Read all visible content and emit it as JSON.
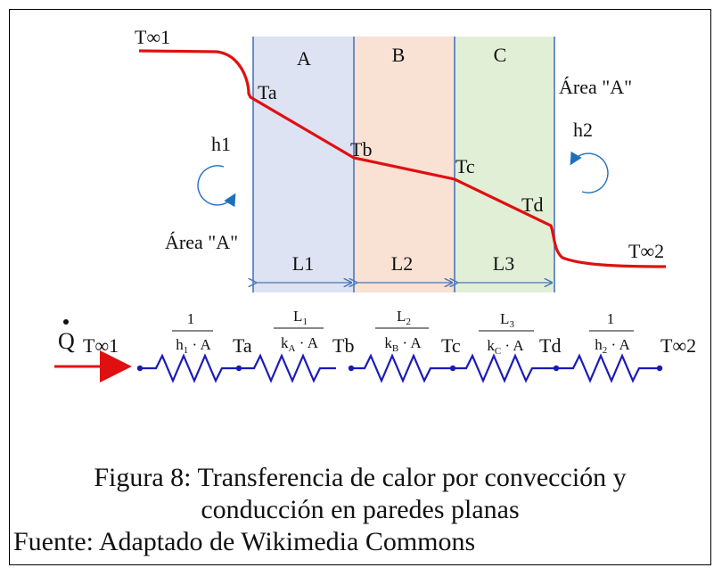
{
  "layers": [
    {
      "name": "A",
      "color": "#dde3f3",
      "length_label": "L1"
    },
    {
      "name": "B",
      "color": "#f9e1d4",
      "length_label": "L2"
    },
    {
      "name": "C",
      "color": "#e1efd7",
      "length_label": "L3"
    }
  ],
  "temperatures": {
    "t_inf1": "T∞1",
    "ta": "Ta",
    "tb": "Tb",
    "tc": "Tc",
    "td": "Td",
    "t_inf2": "T∞2"
  },
  "convection": {
    "h1": "h1",
    "h2": "h2"
  },
  "area_labels": {
    "left": "Área \"A\"",
    "right": "Área \"A\""
  },
  "heat_flow_symbol": "Q",
  "resistances": [
    {
      "num_main": "1",
      "num_sub": "",
      "den_main": "h",
      "den_sub": "1",
      "den_tail": " · A"
    },
    {
      "num_main": "L",
      "num_sub": "1",
      "den_main": "k",
      "den_sub": "A",
      "den_tail": " · A"
    },
    {
      "num_main": "L",
      "num_sub": "2",
      "den_main": "k",
      "den_sub": "B",
      "den_tail": " · A"
    },
    {
      "num_main": "L",
      "num_sub": "3",
      "den_main": "k",
      "den_sub": "C",
      "den_tail": " · A"
    },
    {
      "num_main": "1",
      "num_sub": "",
      "den_main": "h",
      "den_sub": "2",
      "den_tail": " · A"
    }
  ],
  "colors": {
    "temperature_profile": "#e01010",
    "wall_line": "#4a76b8",
    "resistor": "#1a1ab8",
    "arrow": "#e01010"
  },
  "caption": {
    "line1": "Figura 8: Transferencia de calor por convección y",
    "line2": "conducción en paredes planas",
    "source": "Fuente: Adaptado de Wikimedia Commons"
  }
}
